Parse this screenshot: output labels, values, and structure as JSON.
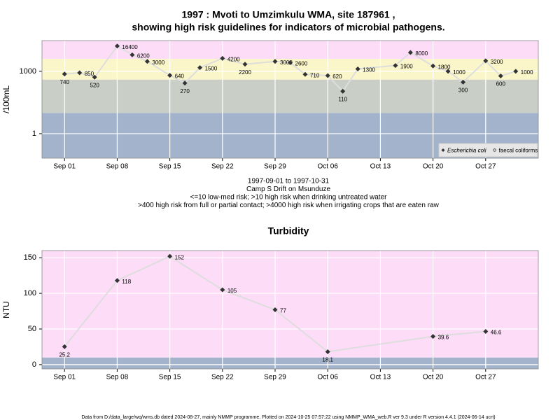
{
  "chart_data": [
    {
      "type": "line",
      "title": [
        "1997 : Mvoti to Umzimkulu WMA, site 187961 ,",
        "showing high risk guidelines for indicators of microbial pathogens."
      ],
      "notes": [
        "1997-09-01 to 1997-10-31",
        "Camp S Drift on Msunduze",
        "<=10 low-med risk; >10 high risk when drinking untreated water",
        ">400 high risk from full or partial contact; >4000 high risk when irrigating crops that are eaten raw"
      ],
      "y_label": "/100mL",
      "log_y": true,
      "grid": true,
      "x": [
        "1997-09-01",
        "1997-09-03",
        "1997-09-05",
        "1997-09-08",
        "1997-09-10",
        "1997-09-12",
        "1997-09-15",
        "1997-09-17",
        "1997-09-19",
        "1997-09-22",
        "1997-09-25",
        "1997-09-29",
        "1997-10-01",
        "1997-10-03",
        "1997-10-06",
        "1997-10-08",
        "1997-10-10",
        "1997-10-15",
        "1997-10-17",
        "1997-10-20",
        "1997-10-22",
        "1997-10-24",
        "1997-10-27",
        "1997-10-29",
        "1997-10-31"
      ],
      "series": [
        {
          "name": "Escherichia coli",
          "color": "#333333",
          "line_color": "#dddddd",
          "values": [
            740,
            850,
            520,
            16400,
            6200,
            3000,
            640,
            270,
            1500,
            4200,
            2200,
            3000,
            2600,
            710,
            620,
            110,
            1300,
            1900,
            8000,
            1800,
            1000,
            300,
            3200,
            600,
            1000
          ]
        }
      ],
      "legend": {
        "position": "bottom-right",
        "entries": [
          {
            "label": "Escherichia coli",
            "marker": "diamond"
          },
          {
            "label": "faecal coliforms",
            "marker": "circle"
          }
        ]
      },
      "band_edges": [
        10,
        400,
        4000
      ],
      "band_colors": [
        "#a3b3cb",
        "#c9cfc6",
        "#fbf6c9",
        "#fddcf7"
      ],
      "xlim": [
        "1997-08-29",
        "1997-11-03"
      ],
      "xticks": [
        {
          "value": "1997-09-01",
          "label": "Sep 01"
        },
        {
          "value": "1997-09-08",
          "label": "Sep 08"
        },
        {
          "value": "1997-09-15",
          "label": "Sep 15"
        },
        {
          "value": "1997-09-22",
          "label": "Sep 22"
        },
        {
          "value": "1997-09-29",
          "label": "Sep 29"
        },
        {
          "value": "1997-10-06",
          "label": "Oct 06"
        },
        {
          "value": "1997-10-13",
          "label": "Oct 13"
        },
        {
          "value": "1997-10-20",
          "label": "Oct 20"
        },
        {
          "value": "1997-10-27",
          "label": "Oct 27"
        }
      ],
      "ylim": [
        0.066,
        30000
      ],
      "yticks": [
        1,
        1000
      ]
    },
    {
      "type": "line",
      "title": [
        "Turbidity"
      ],
      "y_label": "NTU",
      "log_y": false,
      "grid": true,
      "x": [
        "1997-09-01",
        "1997-09-08",
        "1997-09-15",
        "1997-09-22",
        "1997-09-29",
        "1997-10-06",
        "1997-10-20",
        "1997-10-27"
      ],
      "series": [
        {
          "name": "Turbidity",
          "color": "#333333",
          "line_color": "#dddddd",
          "values": [
            25.2,
            118,
            152,
            105,
            77,
            18.1,
            39.6,
            46.6
          ]
        }
      ],
      "band_edges": [
        10
      ],
      "band_colors": [
        "#a3b3cb",
        "#fddcf7"
      ],
      "xlim": [
        "1997-08-29",
        "1997-11-03"
      ],
      "xticks": [
        {
          "value": "1997-09-01",
          "label": "Sep 01"
        },
        {
          "value": "1997-09-08",
          "label": "Sep 08"
        },
        {
          "value": "1997-09-15",
          "label": "Sep 15"
        },
        {
          "value": "1997-09-22",
          "label": "Sep 22"
        },
        {
          "value": "1997-09-29",
          "label": "Sep 29"
        },
        {
          "value": "1997-10-06",
          "label": "Oct 06"
        },
        {
          "value": "1997-10-13",
          "label": "Oct 13"
        },
        {
          "value": "1997-10-20",
          "label": "Oct 20"
        },
        {
          "value": "1997-10-27",
          "label": "Oct 27"
        }
      ],
      "ylim": [
        -6,
        160
      ],
      "yticks": [
        0,
        50,
        100,
        150
      ]
    }
  ],
  "footer": "Data from D:/data_large/wq/wms.db dated 2024-08-27, mainly NMMP programme. Plotted on 2024-10-25 07:57:22 using NMMP_WMA_web.R ver 9.3 under R version 4.4.1 (2024-06-14 ucrt)"
}
